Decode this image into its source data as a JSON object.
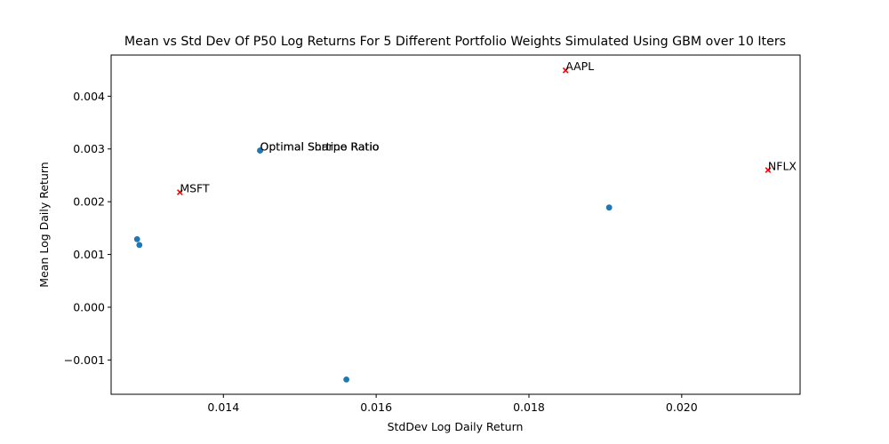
{
  "chart_data": {
    "type": "scatter",
    "title": "Mean vs Std Dev Of P50 Log Returns For 5 Different Portfolio Weights Simulated Using GBM over 10 Iters",
    "xlabel": "StdDev Log Daily Return",
    "ylabel": "Mean Log Daily Return",
    "xlim": [
      0.01253,
      0.02155
    ],
    "ylim": [
      -0.00165,
      0.00478
    ],
    "x_ticks": [
      0.014,
      0.016,
      0.018,
      0.02
    ],
    "x_tick_labels": [
      "0.014",
      "0.016",
      "0.018",
      "0.020"
    ],
    "y_ticks": [
      -0.001,
      0.0,
      0.001,
      0.002,
      0.003,
      0.004
    ],
    "y_tick_labels": [
      "−0.001",
      "0.000",
      "0.001",
      "0.002",
      "0.003",
      "0.004"
    ],
    "grid": false,
    "legend": "none",
    "series": [
      {
        "marker": "circle",
        "color": "#1f77b4",
        "points": [
          {
            "x": 0.01287,
            "y": 0.00129
          },
          {
            "x": 0.0129,
            "y": 0.00118
          },
          {
            "x": 0.01448,
            "y": 0.00297
          },
          {
            "x": 0.01448,
            "y": 0.00297
          },
          {
            "x": 0.01561,
            "y": -0.00137
          },
          {
            "x": 0.01905,
            "y": 0.00189
          }
        ]
      },
      {
        "marker": "x",
        "color": "#ff0000",
        "points": [
          {
            "x": 0.01343,
            "y": 0.00218
          },
          {
            "x": 0.01848,
            "y": 0.00449
          },
          {
            "x": 0.02113,
            "y": 0.0026
          }
        ]
      }
    ],
    "annotations": [
      {
        "text": "Optimal Sharpe Ratio",
        "x": 0.01448,
        "y": 0.00297
      },
      {
        "text": "Optimal Sortino Ratio",
        "x": 0.01448,
        "y": 0.00297
      },
      {
        "text": "MSFT",
        "x": 0.01343,
        "y": 0.00218
      },
      {
        "text": "AAPL",
        "x": 0.01848,
        "y": 0.00449
      },
      {
        "text": "NFLX",
        "x": 0.02113,
        "y": 0.0026
      }
    ]
  }
}
